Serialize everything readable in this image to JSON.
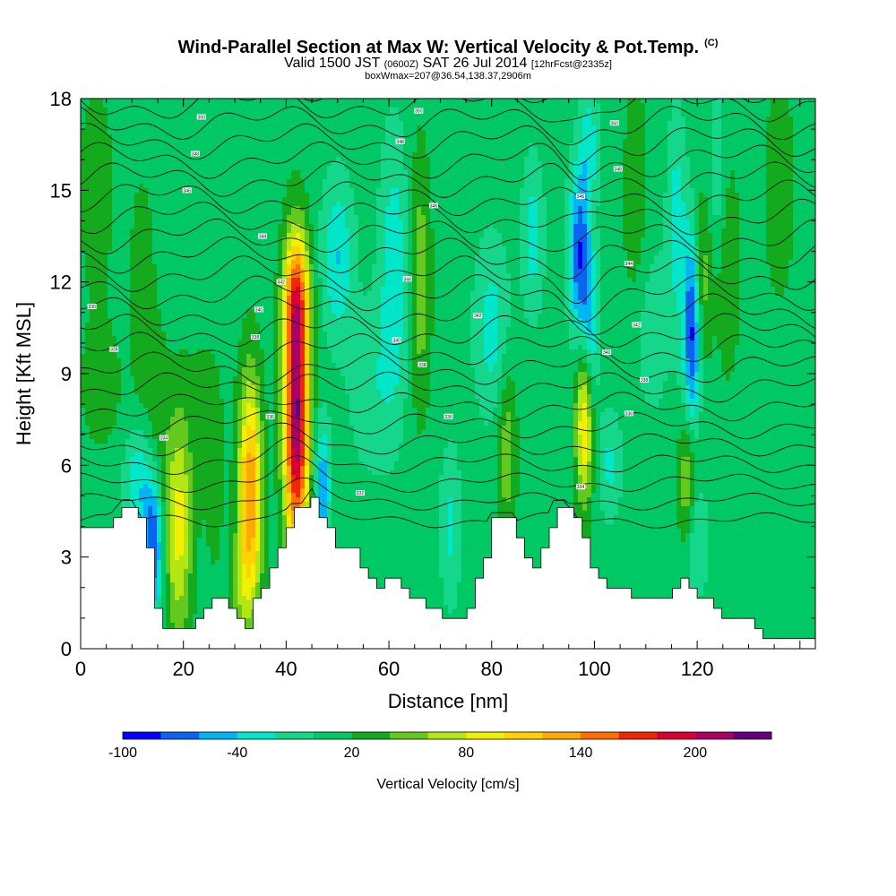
{
  "header": {
    "title": "Wind-Parallel Section at Max W: Vertical Velocity & Pot.Temp.",
    "copyright": "(C)",
    "valid_prefix": "Valid 1500 JST",
    "valid_utc": "(0600Z)",
    "valid_date": "SAT 26 Jul 2014",
    "forecast": "[12hrFcst@2335z]",
    "box_info": "boxWmax=207@36.54,138.37,2906m"
  },
  "chart_data": {
    "type": "heatmap",
    "xlabel": "Distance [nm]",
    "ylabel": "Height [Kft MSL]",
    "xlim": [
      0,
      143
    ],
    "ylim": [
      0,
      18
    ],
    "x_ticks": [
      "0",
      "20",
      "40",
      "60",
      "80",
      "100",
      "120"
    ],
    "y_ticks": [
      "0",
      "3",
      "6",
      "9",
      "12",
      "15",
      "18"
    ],
    "colorbar": {
      "title": "Vertical Velocity [cm/s]",
      "labels": [
        "-100",
        "-40",
        "20",
        "80",
        "140",
        "200"
      ],
      "label_values": [
        -100,
        -40,
        20,
        80,
        140,
        200
      ],
      "levels": [
        -100,
        -80,
        -60,
        -40,
        -20,
        0,
        20,
        40,
        60,
        80,
        100,
        120,
        140,
        160,
        180,
        200,
        220
      ],
      "colors": [
        "#0000ff",
        "#0a64f0",
        "#00b4f5",
        "#00e6c8",
        "#14d78c",
        "#00c864",
        "#14aa1e",
        "#64c81e",
        "#b4e614",
        "#f0f000",
        "#ffd200",
        "#ffaa00",
        "#ff6e00",
        "#f02800",
        "#dc0032",
        "#aa0064",
        "#64007d"
      ]
    },
    "background_value": 10,
    "features": [
      {
        "x": 12,
        "y": 11.5,
        "w": 28,
        "sx": 1.6,
        "sy": 2.6
      },
      {
        "x": 15,
        "y": 7.8,
        "w": 20,
        "sx": 1.5,
        "sy": 2.2
      },
      {
        "x": 14,
        "y": 3.3,
        "w": -95,
        "sx": 1.4,
        "sy": 1.6
      },
      {
        "x": 11,
        "y": 5.5,
        "w": -45,
        "sx": 1.8,
        "sy": 1.2
      },
      {
        "x": 19,
        "y": 4.0,
        "w": 78,
        "sx": 1.9,
        "sy": 2.6
      },
      {
        "x": 24,
        "y": 8.0,
        "w": 14,
        "sx": 3.0,
        "sy": 2.0
      },
      {
        "x": 26,
        "y": 5.0,
        "w": 18,
        "sx": 1.3,
        "sy": 2.0
      },
      {
        "x": 33,
        "y": 5.0,
        "w": 130,
        "sx": 1.6,
        "sy": 2.7
      },
      {
        "x": 31,
        "y": 2.0,
        "w": 30,
        "sx": 1.3,
        "sy": 1.2
      },
      {
        "x": 42,
        "y": 7.5,
        "w": 210,
        "sx": 1.7,
        "sy": 3.2
      },
      {
        "x": 42,
        "y": 11.5,
        "w": 90,
        "sx": 1.8,
        "sy": 1.5
      },
      {
        "x": 47,
        "y": 5.2,
        "w": -70,
        "sx": 1.1,
        "sy": 1.5
      },
      {
        "x": 50,
        "y": 12.8,
        "w": -50,
        "sx": 2.2,
        "sy": 1.8
      },
      {
        "x": 61,
        "y": 12.5,
        "w": -45,
        "sx": 2.0,
        "sy": 3.0
      },
      {
        "x": 57,
        "y": 8.5,
        "w": -25,
        "sx": 3.5,
        "sy": 2.0
      },
      {
        "x": 66,
        "y": 12.0,
        "w": 45,
        "sx": 1.5,
        "sy": 3.0
      },
      {
        "x": 72,
        "y": 4.0,
        "w": -35,
        "sx": 1.4,
        "sy": 1.8
      },
      {
        "x": 80,
        "y": 10.5,
        "w": -40,
        "sx": 2.4,
        "sy": 2.0
      },
      {
        "x": 83,
        "y": 6.5,
        "w": 45,
        "sx": 1.3,
        "sy": 2.0
      },
      {
        "x": 88,
        "y": 13.5,
        "w": -40,
        "sx": 1.5,
        "sy": 1.8
      },
      {
        "x": 97,
        "y": 13.0,
        "w": -85,
        "sx": 1.4,
        "sy": 2.0
      },
      {
        "x": 99,
        "y": 10.5,
        "w": -60,
        "sx": 1.3,
        "sy": 1.8
      },
      {
        "x": 98,
        "y": 7.5,
        "w": 95,
        "sx": 1.2,
        "sy": 2.0
      },
      {
        "x": 99,
        "y": 16.5,
        "w": -40,
        "sx": 1.2,
        "sy": 1.5
      },
      {
        "x": 103,
        "y": 6.0,
        "w": -35,
        "sx": 1.6,
        "sy": 1.2
      },
      {
        "x": 108,
        "y": 14.5,
        "w": 25,
        "sx": 1.8,
        "sy": 3.0
      },
      {
        "x": 111,
        "y": 10.5,
        "w": -25,
        "sx": 2.5,
        "sy": 2.0
      },
      {
        "x": 116,
        "y": 14.0,
        "w": -40,
        "sx": 1.3,
        "sy": 2.5
      },
      {
        "x": 119,
        "y": 10.5,
        "w": -100,
        "sx": 1.2,
        "sy": 2.2
      },
      {
        "x": 121,
        "y": 12.0,
        "w": 45,
        "sx": 1.3,
        "sy": 2.0
      },
      {
        "x": 124,
        "y": 15.5,
        "w": -30,
        "sx": 1.2,
        "sy": 2.0
      },
      {
        "x": 118,
        "y": 5.5,
        "w": 50,
        "sx": 1.2,
        "sy": 1.5
      },
      {
        "x": 126,
        "y": 12.5,
        "w": 30,
        "sx": 1.6,
        "sy": 2.5
      },
      {
        "x": 120,
        "y": 3.5,
        "w": -35,
        "sx": 1.5,
        "sy": 1.2
      },
      {
        "x": 136,
        "y": 15.0,
        "w": 20,
        "sx": 2.5,
        "sy": 3.0
      },
      {
        "x": 3,
        "y": 15.0,
        "w": 18,
        "sx": 3.0,
        "sy": 3.0
      },
      {
        "x": 4,
        "y": 8.5,
        "w": 20,
        "sx": 3.0,
        "sy": 1.5
      }
    ],
    "terrain_kft": [
      [
        0,
        3.8
      ],
      [
        1.5,
        4.0
      ],
      [
        5,
        4.0
      ],
      [
        8,
        4.6
      ],
      [
        10,
        4.6
      ],
      [
        12,
        4.0
      ],
      [
        13,
        3.0
      ],
      [
        14,
        1.3
      ],
      [
        15,
        1.0
      ],
      [
        16,
        0.6
      ],
      [
        20,
        0.6
      ],
      [
        23,
        1.0
      ],
      [
        25,
        1.5
      ],
      [
        28,
        1.6
      ],
      [
        30,
        1.0
      ],
      [
        31,
        0.6
      ],
      [
        32,
        0.6
      ],
      [
        33,
        1.3
      ],
      [
        35,
        2.0
      ],
      [
        38,
        3.0
      ],
      [
        41,
        4.5
      ],
      [
        43,
        4.5
      ],
      [
        45,
        5.0
      ],
      [
        46,
        4.6
      ],
      [
        47,
        4.2
      ],
      [
        48,
        3.8
      ],
      [
        49,
        3.4
      ],
      [
        52,
        3.4
      ],
      [
        55,
        2.6
      ],
      [
        57,
        2.0
      ],
      [
        60,
        2.3
      ],
      [
        62,
        2.0
      ],
      [
        63,
        1.8
      ],
      [
        65,
        1.5
      ],
      [
        67,
        1.5
      ],
      [
        70,
        1.0
      ],
      [
        71,
        1.2
      ],
      [
        72,
        1.0
      ],
      [
        74,
        1.0
      ],
      [
        76,
        1.8
      ],
      [
        79,
        3.2
      ],
      [
        80,
        4.2
      ],
      [
        84,
        4.2
      ],
      [
        86,
        3.0
      ],
      [
        88,
        2.6
      ],
      [
        90,
        3.3
      ],
      [
        92,
        4.6
      ],
      [
        94,
        4.6
      ],
      [
        96,
        4.2
      ],
      [
        98,
        3.4
      ],
      [
        100,
        2.4
      ],
      [
        103,
        2.0
      ],
      [
        105,
        1.9
      ],
      [
        107,
        1.8
      ],
      [
        110,
        1.5
      ],
      [
        113,
        1.5
      ],
      [
        115,
        1.8
      ],
      [
        117,
        2.4
      ],
      [
        118,
        2.0
      ],
      [
        119,
        1.6
      ],
      [
        120,
        1.8
      ],
      [
        122,
        1.5
      ],
      [
        125,
        1.1
      ],
      [
        128,
        1.0
      ],
      [
        131,
        0.7
      ],
      [
        134,
        0.3
      ],
      [
        143,
        0.3
      ]
    ],
    "potential_temperature_labels": [
      {
        "text": "350",
        "x": 23.5,
        "y": 17.4
      },
      {
        "text": "348",
        "x": 22.3,
        "y": 16.2
      },
      {
        "text": "346",
        "x": 20.7,
        "y": 15.0
      },
      {
        "text": "344",
        "x": 35.4,
        "y": 13.5
      },
      {
        "text": "342",
        "x": 39.0,
        "y": 12.0
      },
      {
        "text": "340",
        "x": 34.7,
        "y": 11.1
      },
      {
        "text": "338",
        "x": 34.0,
        "y": 10.2
      },
      {
        "text": "336",
        "x": 36.9,
        "y": 7.6
      },
      {
        "text": "334",
        "x": 16.2,
        "y": 6.9
      },
      {
        "text": "332",
        "x": 54.4,
        "y": 5.1
      },
      {
        "text": "330",
        "x": 2.2,
        "y": 11.2
      },
      {
        "text": "328",
        "x": 6.5,
        "y": 9.8
      },
      {
        "text": "350",
        "x": 65.8,
        "y": 17.6
      },
      {
        "text": "348",
        "x": 62.2,
        "y": 16.6
      },
      {
        "text": "346",
        "x": 68.7,
        "y": 14.5
      },
      {
        "text": "344",
        "x": 63.6,
        "y": 12.1
      },
      {
        "text": "342",
        "x": 77.3,
        "y": 10.9
      },
      {
        "text": "340",
        "x": 61.5,
        "y": 10.1
      },
      {
        "text": "338",
        "x": 66.5,
        "y": 9.3
      },
      {
        "text": "336",
        "x": 71.6,
        "y": 7.6
      },
      {
        "text": "350",
        "x": 103.9,
        "y": 17.2
      },
      {
        "text": "348",
        "x": 104.6,
        "y": 15.7
      },
      {
        "text": "346",
        "x": 97.3,
        "y": 14.8
      },
      {
        "text": "344",
        "x": 106.7,
        "y": 12.6
      },
      {
        "text": "342",
        "x": 108.2,
        "y": 10.6
      },
      {
        "text": "340",
        "x": 102.4,
        "y": 9.7
      },
      {
        "text": "338",
        "x": 109.7,
        "y": 8.8
      },
      {
        "text": "336",
        "x": 106.7,
        "y": 7.7
      },
      {
        "text": "334",
        "x": 97.3,
        "y": 5.3
      }
    ]
  }
}
